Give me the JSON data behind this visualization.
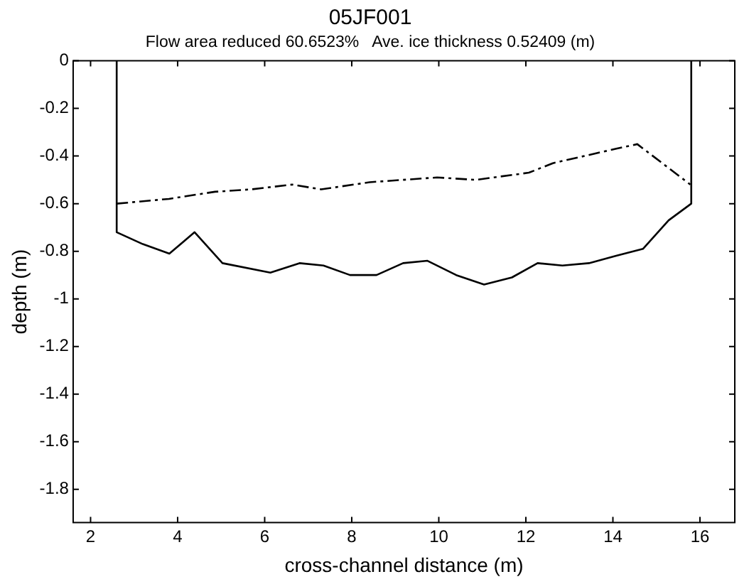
{
  "chart_data": {
    "type": "line",
    "title": "05JF001",
    "subtitle": "Flow area reduced 60.6523%   Ave. ice thickness 0.52409 (m)",
    "xlabel": "cross-channel distance (m)",
    "ylabel": "depth (m)",
    "xlim": [
      1.6,
      16.8
    ],
    "xticks": [
      2,
      4,
      6,
      8,
      10,
      12,
      14,
      16
    ],
    "ylim": [
      -1.94,
      0
    ],
    "yticks": [
      0,
      -0.2,
      -0.4,
      -0.6,
      -0.8,
      -1,
      -1.2,
      -1.4,
      -1.6,
      -1.8
    ],
    "grid": false,
    "legend": false,
    "marker": "none",
    "series": [
      {
        "color": "#000000",
        "line_style": "solid",
        "x": [
          2.6,
          2.6,
          3.2,
          3.81,
          4.39,
          5.03,
          6.13,
          6.8,
          7.35,
          7.96,
          8.57,
          9.18,
          9.74,
          10.4,
          11.04,
          11.68,
          12.27,
          12.84,
          13.45,
          14.06,
          14.69,
          15.28,
          15.8,
          15.8
        ],
        "values": [
          0,
          -0.72,
          -0.77,
          -0.81,
          -0.72,
          -0.85,
          -0.89,
          -0.85,
          -0.86,
          -0.9,
          -0.9,
          -0.85,
          -0.84,
          -0.9,
          -0.94,
          -0.91,
          -0.85,
          -0.86,
          -0.85,
          -0.82,
          -0.79,
          -0.67,
          -0.6,
          0
        ]
      },
      {
        "color": "#000000",
        "line_style": "dashed",
        "x": [
          2.6,
          3.8,
          4.86,
          5.69,
          6.63,
          7.3,
          8.41,
          9.96,
          10.85,
          12.07,
          12.62,
          14.06,
          14.56,
          15.78
        ],
        "values": [
          -0.6,
          -0.58,
          -0.55,
          -0.54,
          -0.52,
          -0.54,
          -0.51,
          -0.49,
          -0.5,
          -0.47,
          -0.43,
          -0.37,
          -0.35,
          -0.52
        ]
      }
    ]
  }
}
